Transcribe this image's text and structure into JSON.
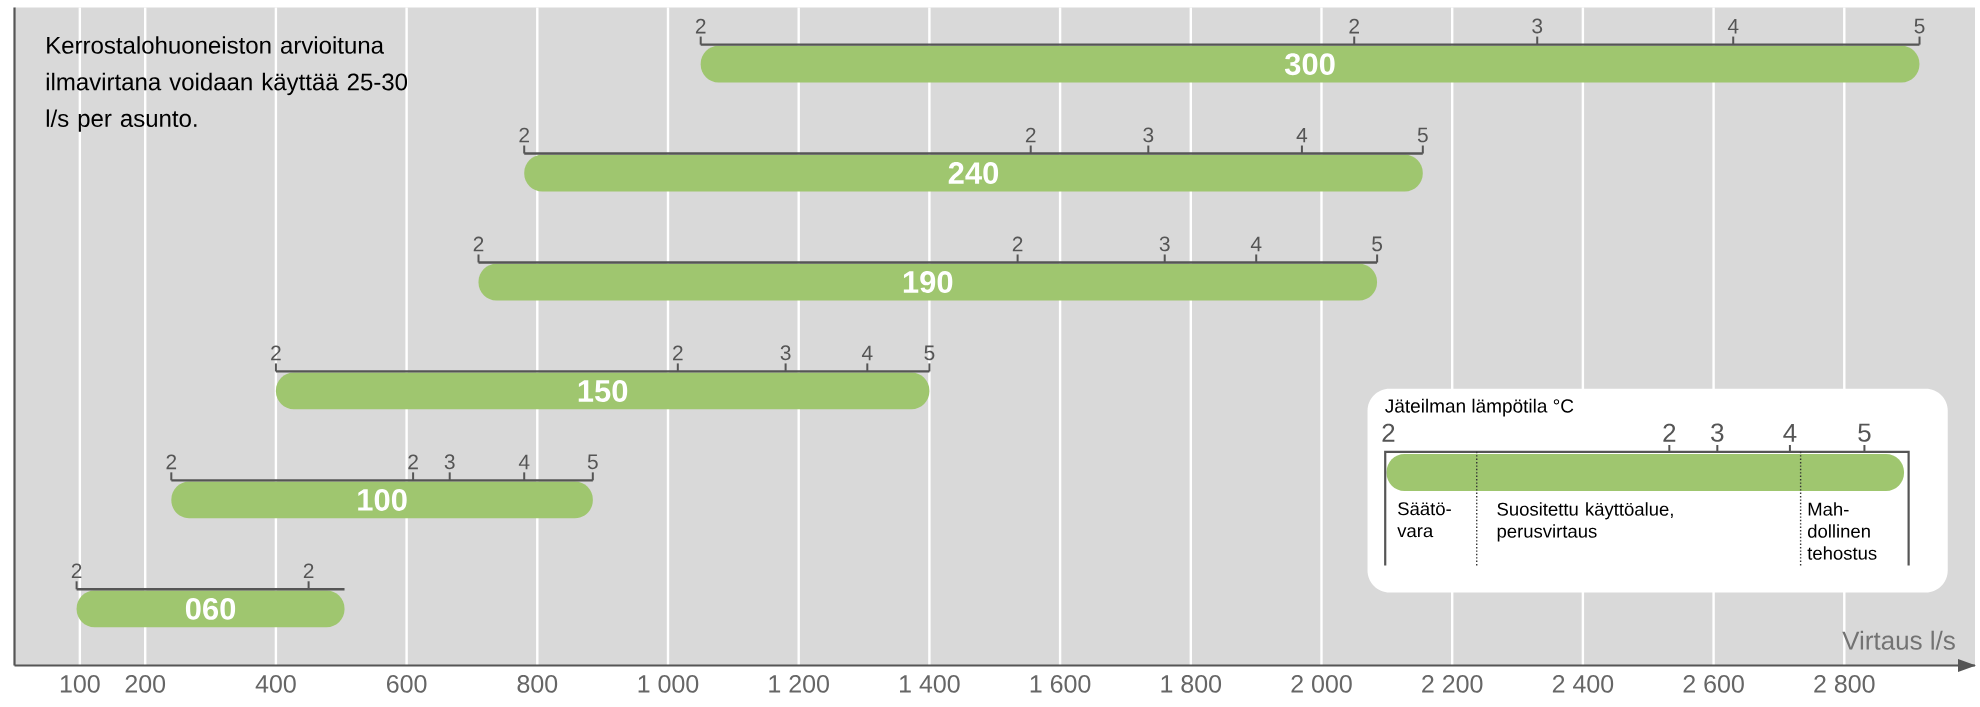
{
  "chart_data": {
    "type": "bar",
    "orientation": "horizontal",
    "xlabel": "Virtaus l/s",
    "categories": [
      "300",
      "240",
      "190",
      "150",
      "100",
      "060"
    ],
    "base": [
      1050,
      780,
      710,
      400,
      240,
      95
    ],
    "values": [
      1865,
      1375,
      1375,
      1000,
      645,
      410
    ],
    "color": "#9fc66f",
    "xlim": [
      0,
      3000
    ],
    "xticks": [
      100,
      200,
      400,
      600,
      800,
      {
        "value": 1000,
        "label": "1 000"
      },
      {
        "value": 1200,
        "label": "1 200"
      },
      {
        "value": 1400,
        "label": "1 400"
      },
      {
        "value": 1600,
        "label": "1 600"
      },
      {
        "value": 1800,
        "label": "1 800"
      },
      {
        "value": 2000,
        "label": "2 000"
      },
      {
        "value": 2200,
        "label": "2 200"
      },
      {
        "value": 2400,
        "label": "2 400"
      },
      {
        "value": 2600,
        "label": "2 600"
      },
      {
        "value": 2800,
        "label": "2 800"
      }
    ],
    "grid": "x",
    "annotations": [
      "Kerrostalohuoneiston arvioituna ilmavirtana voidaan käyttää 25-30 l/s per asunto.",
      "2",
      "2",
      "3",
      "4",
      "5",
      "2",
      "2",
      "3",
      "4",
      "5",
      "2",
      "2",
      "3",
      "4",
      "5",
      "2",
      "2",
      "3",
      "4",
      "5",
      "2",
      "2",
      "3",
      "4",
      "5",
      "2",
      "2",
      "Jäteilman lämpötila °C",
      "2",
      "2",
      "3",
      "4",
      "5",
      "Säätö-vara",
      "Suositettu käyttöalue, perusvirtaus",
      "Mah-dollinen tehostus"
    ]
  }
}
